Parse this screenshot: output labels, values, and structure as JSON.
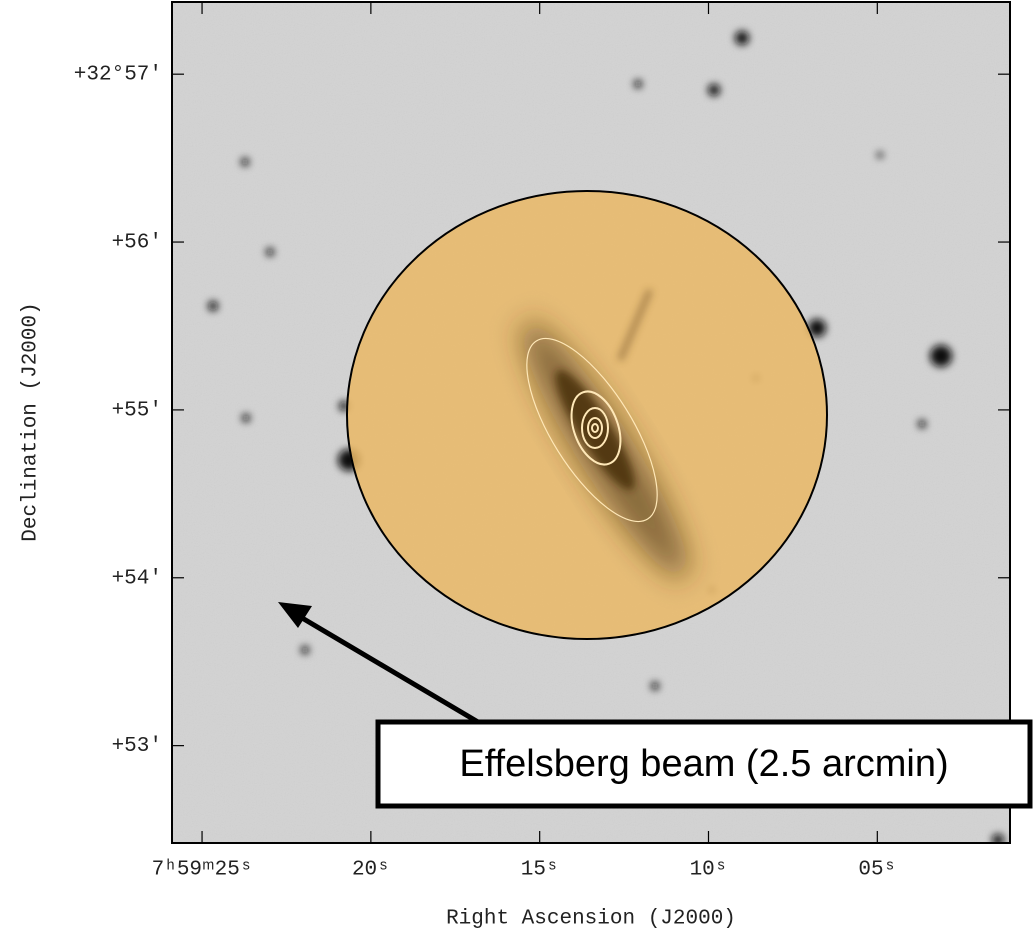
{
  "chart_data": {
    "type": "image",
    "x_label": "Right Ascension (J2000)",
    "y_label": "Declination (J2000)",
    "annotation": "Effelsberg beam (2.5 arcmin)",
    "xlim": [
      25.89,
      1.07
    ],
    "ylim": [
      52.42,
      57.43
    ],
    "xticks": [
      {
        "value": 25,
        "label": "7ʰ59ᵐ25ˢ"
      },
      {
        "value": 20,
        "label": "20ˢ"
      },
      {
        "value": 15,
        "label": "15ˢ"
      },
      {
        "value": 10,
        "label": "10ˢ"
      },
      {
        "value": 5,
        "label": "05ˢ"
      }
    ],
    "yticks": [
      {
        "value": 57,
        "label": "+32°57′"
      },
      {
        "value": 56,
        "label": "+56′"
      },
      {
        "value": 55,
        "label": "+55′"
      },
      {
        "value": 54,
        "label": "+54′"
      },
      {
        "value": 53,
        "label": "+53′"
      }
    ]
  }
}
